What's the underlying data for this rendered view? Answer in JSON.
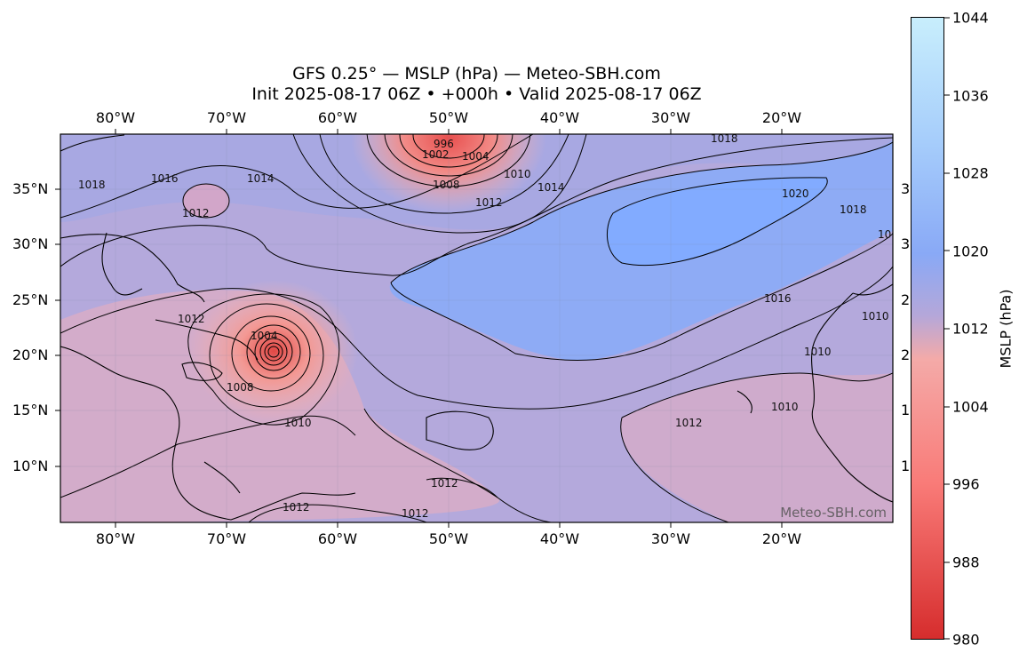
{
  "header": {
    "title_line1": "GFS 0.25° — MSLP (hPa) — Meteo-SBH.com",
    "title_line2": "Init 2025-08-17 06Z • +000h • Valid 2025-08-17 06Z"
  },
  "axes": {
    "lon_ticks": [
      "80°W",
      "70°W",
      "60°W",
      "50°W",
      "40°W",
      "30°W",
      "20°W"
    ],
    "lat_ticks": [
      "35°N",
      "30°N",
      "25°N",
      "20°N",
      "15°N",
      "10°N"
    ],
    "lat_ticks_right_partial": [
      "3",
      "3",
      "2",
      "2",
      "1",
      "1"
    ]
  },
  "colorbar": {
    "label": "MSLP (hPa)",
    "ticks": [
      "1044",
      "1036",
      "1028",
      "1020",
      "1012",
      "1004",
      "996",
      "988",
      "980"
    ],
    "low_color": "#d62d2d",
    "mid_color": "#b5a7d9",
    "high_color": "#c8eefc"
  },
  "map": {
    "contour_labels": [
      "996",
      "1002",
      "1004",
      "1008",
      "1010",
      "1012",
      "1014",
      "1016",
      "1018",
      "1020"
    ],
    "watermark": "Meteo-SBH.com"
  }
}
